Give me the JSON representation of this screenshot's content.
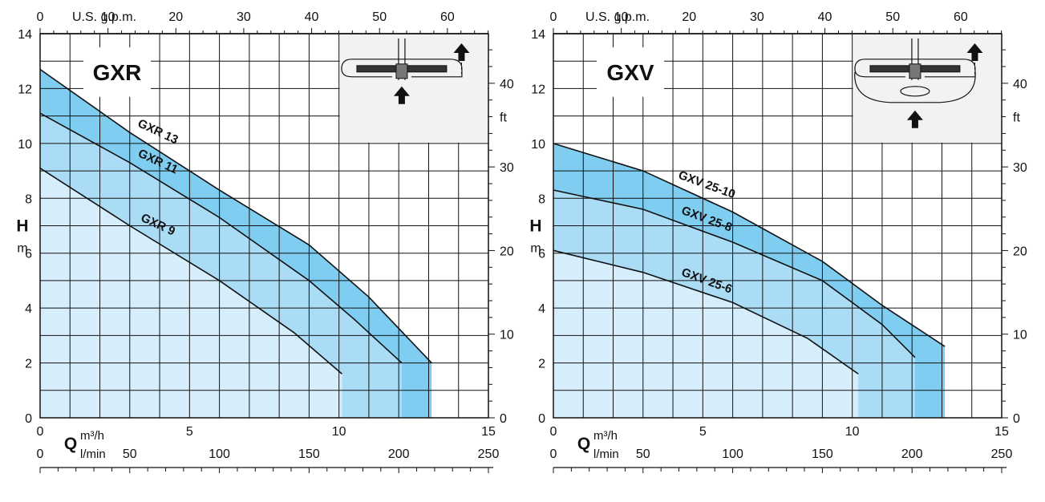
{
  "colors": {
    "band_light": "#d6eefb",
    "band_mid": "#abdcf6",
    "band_dark": "#7fcdf1",
    "grid": "#111111",
    "inset_bg": "#f2f2f2"
  },
  "icons": [
    "pump-schematic-icon",
    "arrow-up-icon"
  ],
  "chart_data": [
    {
      "type": "line",
      "title": "GXR",
      "xlabel": "Q",
      "x_unit": "m³/h",
      "x_secondary_unit": "l/min",
      "x_top_label": "U.S. g.p.m.",
      "ylabel": "H",
      "y_unit": "m",
      "y_right_unit": "ft",
      "xlim": [
        0,
        15
      ],
      "ylim": [
        0,
        14
      ],
      "x_ticks": [
        0,
        5,
        10,
        15
      ],
      "y_ticks": [
        0,
        2,
        4,
        6,
        8,
        10,
        12,
        14
      ],
      "lmin_ticks": [
        0,
        50,
        100,
        150,
        200,
        250
      ],
      "gpm_ticks": [
        0,
        10,
        20,
        30,
        40,
        50,
        60
      ],
      "ft_ticks": [
        0,
        10,
        20,
        30,
        40
      ],
      "grid": true,
      "series": [
        {
          "name": "GXR 13",
          "x": [
            0,
            3,
            6,
            9,
            11,
            13.1
          ],
          "y": [
            12.7,
            10.4,
            8.3,
            6.3,
            4.4,
            2.0
          ]
        },
        {
          "name": "GXR 11",
          "x": [
            0,
            3,
            6,
            9,
            10.5,
            12.1
          ],
          "y": [
            11.1,
            9.3,
            7.3,
            5.0,
            3.6,
            2.0
          ]
        },
        {
          "name": "GXR 9",
          "x": [
            0,
            3,
            6,
            8.5,
            10.1
          ],
          "y": [
            9.1,
            7.0,
            5.0,
            3.1,
            1.6
          ]
        }
      ]
    },
    {
      "type": "line",
      "title": "GXV",
      "xlabel": "Q",
      "x_unit": "m³/h",
      "x_secondary_unit": "l/min",
      "x_top_label": "U.S. g.p.m.",
      "ylabel": "H",
      "y_unit": "m",
      "y_right_unit": "ft",
      "xlim": [
        0,
        15
      ],
      "ylim": [
        0,
        14
      ],
      "x_ticks": [
        0,
        5,
        10,
        15
      ],
      "y_ticks": [
        0,
        2,
        4,
        6,
        8,
        10,
        12,
        14
      ],
      "lmin_ticks": [
        0,
        50,
        100,
        150,
        200,
        250
      ],
      "gpm_ticks": [
        0,
        10,
        20,
        30,
        40,
        50,
        60
      ],
      "ft_ticks": [
        0,
        10,
        20,
        30,
        40
      ],
      "grid": true,
      "series": [
        {
          "name": "GXV 25-10",
          "x": [
            0,
            3,
            6,
            9,
            11,
            13.1
          ],
          "y": [
            10.0,
            9.0,
            7.5,
            5.7,
            4.1,
            2.6
          ]
        },
        {
          "name": "GXV 25-8",
          "x": [
            0,
            3,
            6,
            9,
            11,
            12.1
          ],
          "y": [
            8.3,
            7.6,
            6.4,
            5.0,
            3.4,
            2.2
          ]
        },
        {
          "name": "GXV 25-6",
          "x": [
            0,
            3,
            6,
            8.5,
            10.2
          ],
          "y": [
            6.1,
            5.3,
            4.2,
            2.9,
            1.6
          ]
        }
      ]
    }
  ]
}
